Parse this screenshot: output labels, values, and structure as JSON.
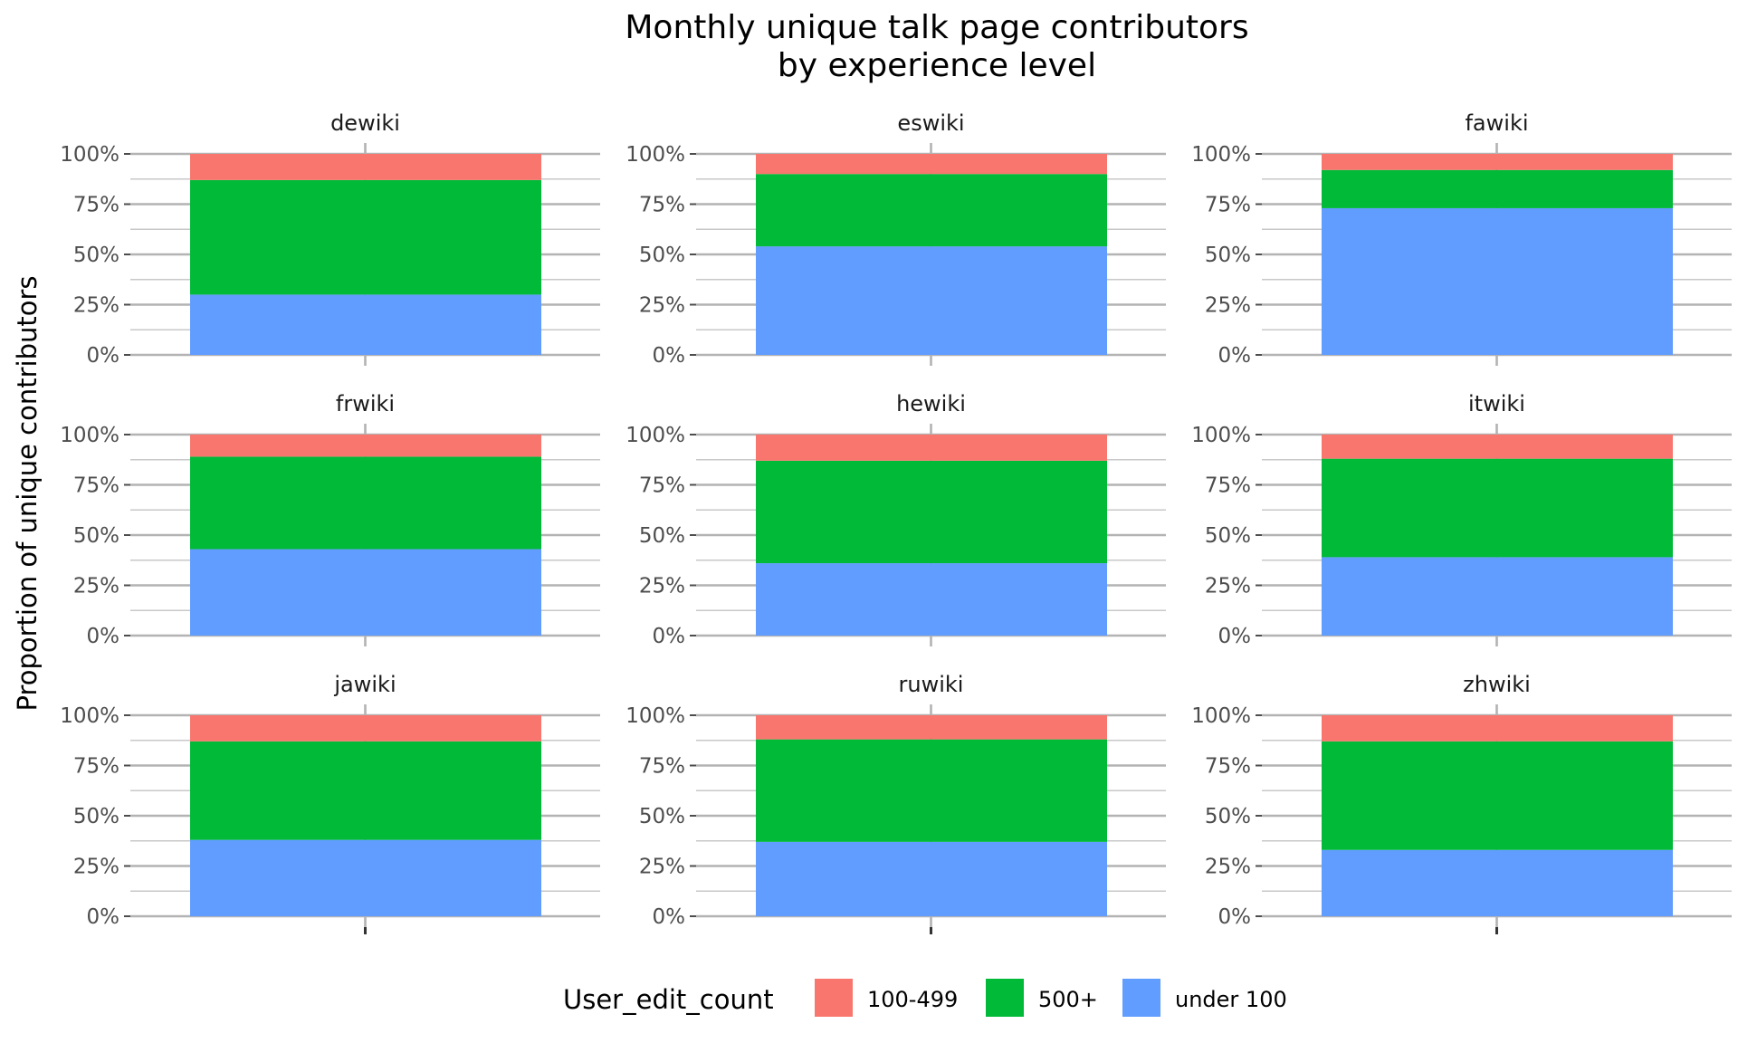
{
  "chart_data": {
    "type": "bar",
    "stacked": true,
    "title_lines": [
      "Monthly unique talk page contributors",
      "by experience level"
    ],
    "xlabel": "",
    "ylabel": "Proportion of unique contributors",
    "ylim": [
      0,
      1
    ],
    "y_ticks": [
      "0%",
      "25%",
      "50%",
      "75%",
      "100%"
    ],
    "grid": true,
    "legend": {
      "title": "User_edit_count",
      "position": "bottom",
      "items": [
        {
          "label": "100-499",
          "color": "#F8766D"
        },
        {
          "label": "500+",
          "color": "#00BA38"
        },
        {
          "label": "under 100",
          "color": "#619CFF"
        }
      ]
    },
    "facets": [
      {
        "name": "dewiki",
        "under_100": 0.3,
        "plus_500": 0.57,
        "range_100_499": 0.13
      },
      {
        "name": "eswiki",
        "under_100": 0.54,
        "plus_500": 0.36,
        "range_100_499": 0.1
      },
      {
        "name": "fawiki",
        "under_100": 0.73,
        "plus_500": 0.19,
        "range_100_499": 0.08
      },
      {
        "name": "frwiki",
        "under_100": 0.43,
        "plus_500": 0.46,
        "range_100_499": 0.11
      },
      {
        "name": "hewiki",
        "under_100": 0.36,
        "plus_500": 0.51,
        "range_100_499": 0.13
      },
      {
        "name": "itwiki",
        "under_100": 0.39,
        "plus_500": 0.49,
        "range_100_499": 0.12
      },
      {
        "name": "jawiki",
        "under_100": 0.38,
        "plus_500": 0.49,
        "range_100_499": 0.13
      },
      {
        "name": "ruwiki",
        "under_100": 0.37,
        "plus_500": 0.51,
        "range_100_499": 0.12
      },
      {
        "name": "zhwiki",
        "under_100": 0.33,
        "plus_500": 0.54,
        "range_100_499": 0.13
      }
    ]
  }
}
